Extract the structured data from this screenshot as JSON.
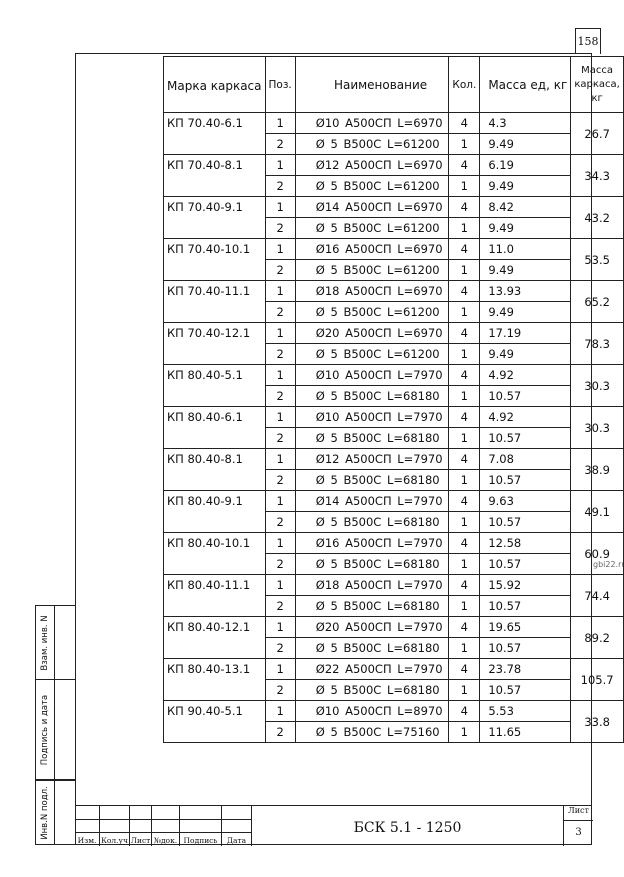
{
  "sheet_number": "158",
  "watermark": "gbi22.ru",
  "table": {
    "headers": {
      "mark": "Марка каркаса",
      "pos": "Поз.",
      "name": "Наименование",
      "qty": "Кол.",
      "unit_mass": "Масса ед, кг",
      "frame_mass": "Масса каркаса, кг"
    },
    "groups": [
      {
        "mark": "КП 70.40-6.1",
        "total": "26.7",
        "rows": [
          [
            "1",
            "Ø10 А500СП  L=6970",
            "4",
            "4.3"
          ],
          [
            "2",
            "Ø 5 В500С   L=61200",
            "1",
            "9.49"
          ]
        ]
      },
      {
        "mark": "КП 70.40-8.1",
        "total": "34.3",
        "rows": [
          [
            "1",
            "Ø12 А500СП  L=6970",
            "4",
            "6.19"
          ],
          [
            "2",
            "Ø 5 В500С   L=61200",
            "1",
            "9.49"
          ]
        ]
      },
      {
        "mark": "КП 70.40-9.1",
        "total": "43.2",
        "rows": [
          [
            "1",
            "Ø14 А500СП  L=6970",
            "4",
            "8.42"
          ],
          [
            "2",
            "Ø 5 В500С   L=61200",
            "1",
            "9.49"
          ]
        ]
      },
      {
        "mark": "КП 70.40-10.1",
        "total": "53.5",
        "rows": [
          [
            "1",
            "Ø16 А500СП  L=6970",
            "4",
            "11.0"
          ],
          [
            "2",
            "Ø 5 В500С   L=61200",
            "1",
            "9.49"
          ]
        ]
      },
      {
        "mark": "КП 70.40-11.1",
        "total": "65.2",
        "rows": [
          [
            "1",
            "Ø18 А500СП  L=6970",
            "4",
            "13.93"
          ],
          [
            "2",
            "Ø 5 В500С   L=61200",
            "1",
            "9.49"
          ]
        ]
      },
      {
        "mark": "КП 70.40-12.1",
        "total": "78.3",
        "rows": [
          [
            "1",
            "Ø20 А500СП  L=6970",
            "4",
            "17.19"
          ],
          [
            "2",
            "Ø 5 В500С   L=61200",
            "1",
            "9.49"
          ]
        ]
      },
      {
        "mark": "КП 80.40-5.1",
        "total": "30.3",
        "rows": [
          [
            "1",
            "Ø10 А500СП  L=7970",
            "4",
            "4.92"
          ],
          [
            "2",
            "Ø 5 В500С   L=68180",
            "1",
            "10.57"
          ]
        ]
      },
      {
        "mark": "КП 80.40-6.1",
        "total": "30.3",
        "rows": [
          [
            "1",
            "Ø10 А500СП  L=7970",
            "4",
            "4.92"
          ],
          [
            "2",
            "Ø 5 В500С   L=68180",
            "1",
            "10.57"
          ]
        ]
      },
      {
        "mark": "КП 80.40-8.1",
        "total": "38.9",
        "rows": [
          [
            "1",
            "Ø12 А500СП  L=7970",
            "4",
            "7.08"
          ],
          [
            "2",
            "Ø 5 В500С   L=68180",
            "1",
            "10.57"
          ]
        ]
      },
      {
        "mark": "КП 80.40-9.1",
        "total": "49.1",
        "rows": [
          [
            "1",
            "Ø14 А500СП  L=7970",
            "4",
            "9.63"
          ],
          [
            "2",
            "Ø 5 В500С   L=68180",
            "1",
            "10.57"
          ]
        ]
      },
      {
        "mark": "КП 80.40-10.1",
        "total": "60.9",
        "rows": [
          [
            "1",
            "Ø16 А500СП  L=7970",
            "4",
            "12.58"
          ],
          [
            "2",
            "Ø 5 В500С   L=68180",
            "1",
            "10.57"
          ]
        ]
      },
      {
        "mark": "КП 80.40-11.1",
        "total": "74.4",
        "rows": [
          [
            "1",
            "Ø18 А500СП  L=7970",
            "4",
            "15.92"
          ],
          [
            "2",
            "Ø 5 В500С   L=68180",
            "1",
            "10.57"
          ]
        ]
      },
      {
        "mark": "КП 80.40-12.1",
        "total": "89.2",
        "rows": [
          [
            "1",
            "Ø20 А500СП  L=7970",
            "4",
            "19.65"
          ],
          [
            "2",
            "Ø 5 В500С   L=68180",
            "1",
            "10.57"
          ]
        ]
      },
      {
        "mark": "КП 80.40-13.1",
        "total": "105.7",
        "rows": [
          [
            "1",
            "Ø22 А500СП  L=7970",
            "4",
            "23.78"
          ],
          [
            "2",
            "Ø 5 В500С   L=68180",
            "1",
            "10.57"
          ]
        ]
      },
      {
        "mark": "КП 90.40-5.1",
        "total": "33.8",
        "rows": [
          [
            "1",
            "Ø10 А500СП  L=8970",
            "4",
            "5.53"
          ],
          [
            "2",
            "Ø 5 В500С   L=75160",
            "1",
            "11.65"
          ]
        ]
      }
    ]
  },
  "side_stamps": {
    "replace_inv": "Взам. инв. N",
    "signature_date": "Подпись и дата",
    "inv_original": "Инв.N подл."
  },
  "title_block": {
    "columns": [
      "Изм.",
      "Кол.уч",
      "Лист",
      "№док.",
      "Подпись",
      "Дата"
    ],
    "document_code": "БСК 5.1 - 1250",
    "sheet_label": "Лист",
    "sheet_value": "3"
  }
}
